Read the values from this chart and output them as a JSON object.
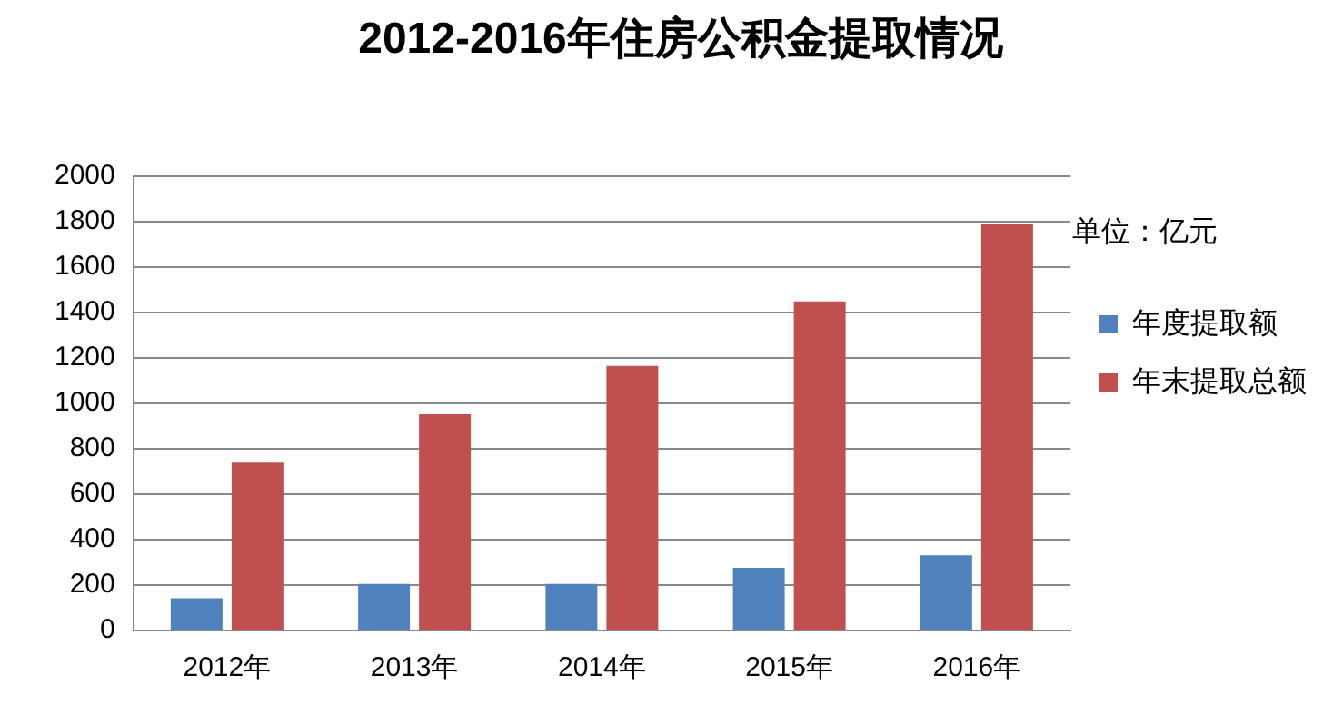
{
  "chart_data": {
    "type": "bar",
    "title": "2012-2016年住房公积金提取情况",
    "annotations": [
      "单位：亿元"
    ],
    "categories": [
      "2012年",
      "2013年",
      "2014年",
      "2015年",
      "2016年"
    ],
    "series": [
      {
        "name": "年度提取额",
        "color": "#4f81bd",
        "values": [
          142,
          205,
          205,
          276,
          331
        ]
      },
      {
        "name": "年末提取总额",
        "color": "#c0504d",
        "values": [
          738,
          951,
          1164,
          1448,
          1787
        ]
      }
    ],
    "ylim": [
      0,
      2000
    ],
    "yticks": [
      0,
      200,
      400,
      600,
      800,
      1000,
      1200,
      1400,
      1600,
      1800,
      2000
    ],
    "grid": "y",
    "legend": "right"
  }
}
